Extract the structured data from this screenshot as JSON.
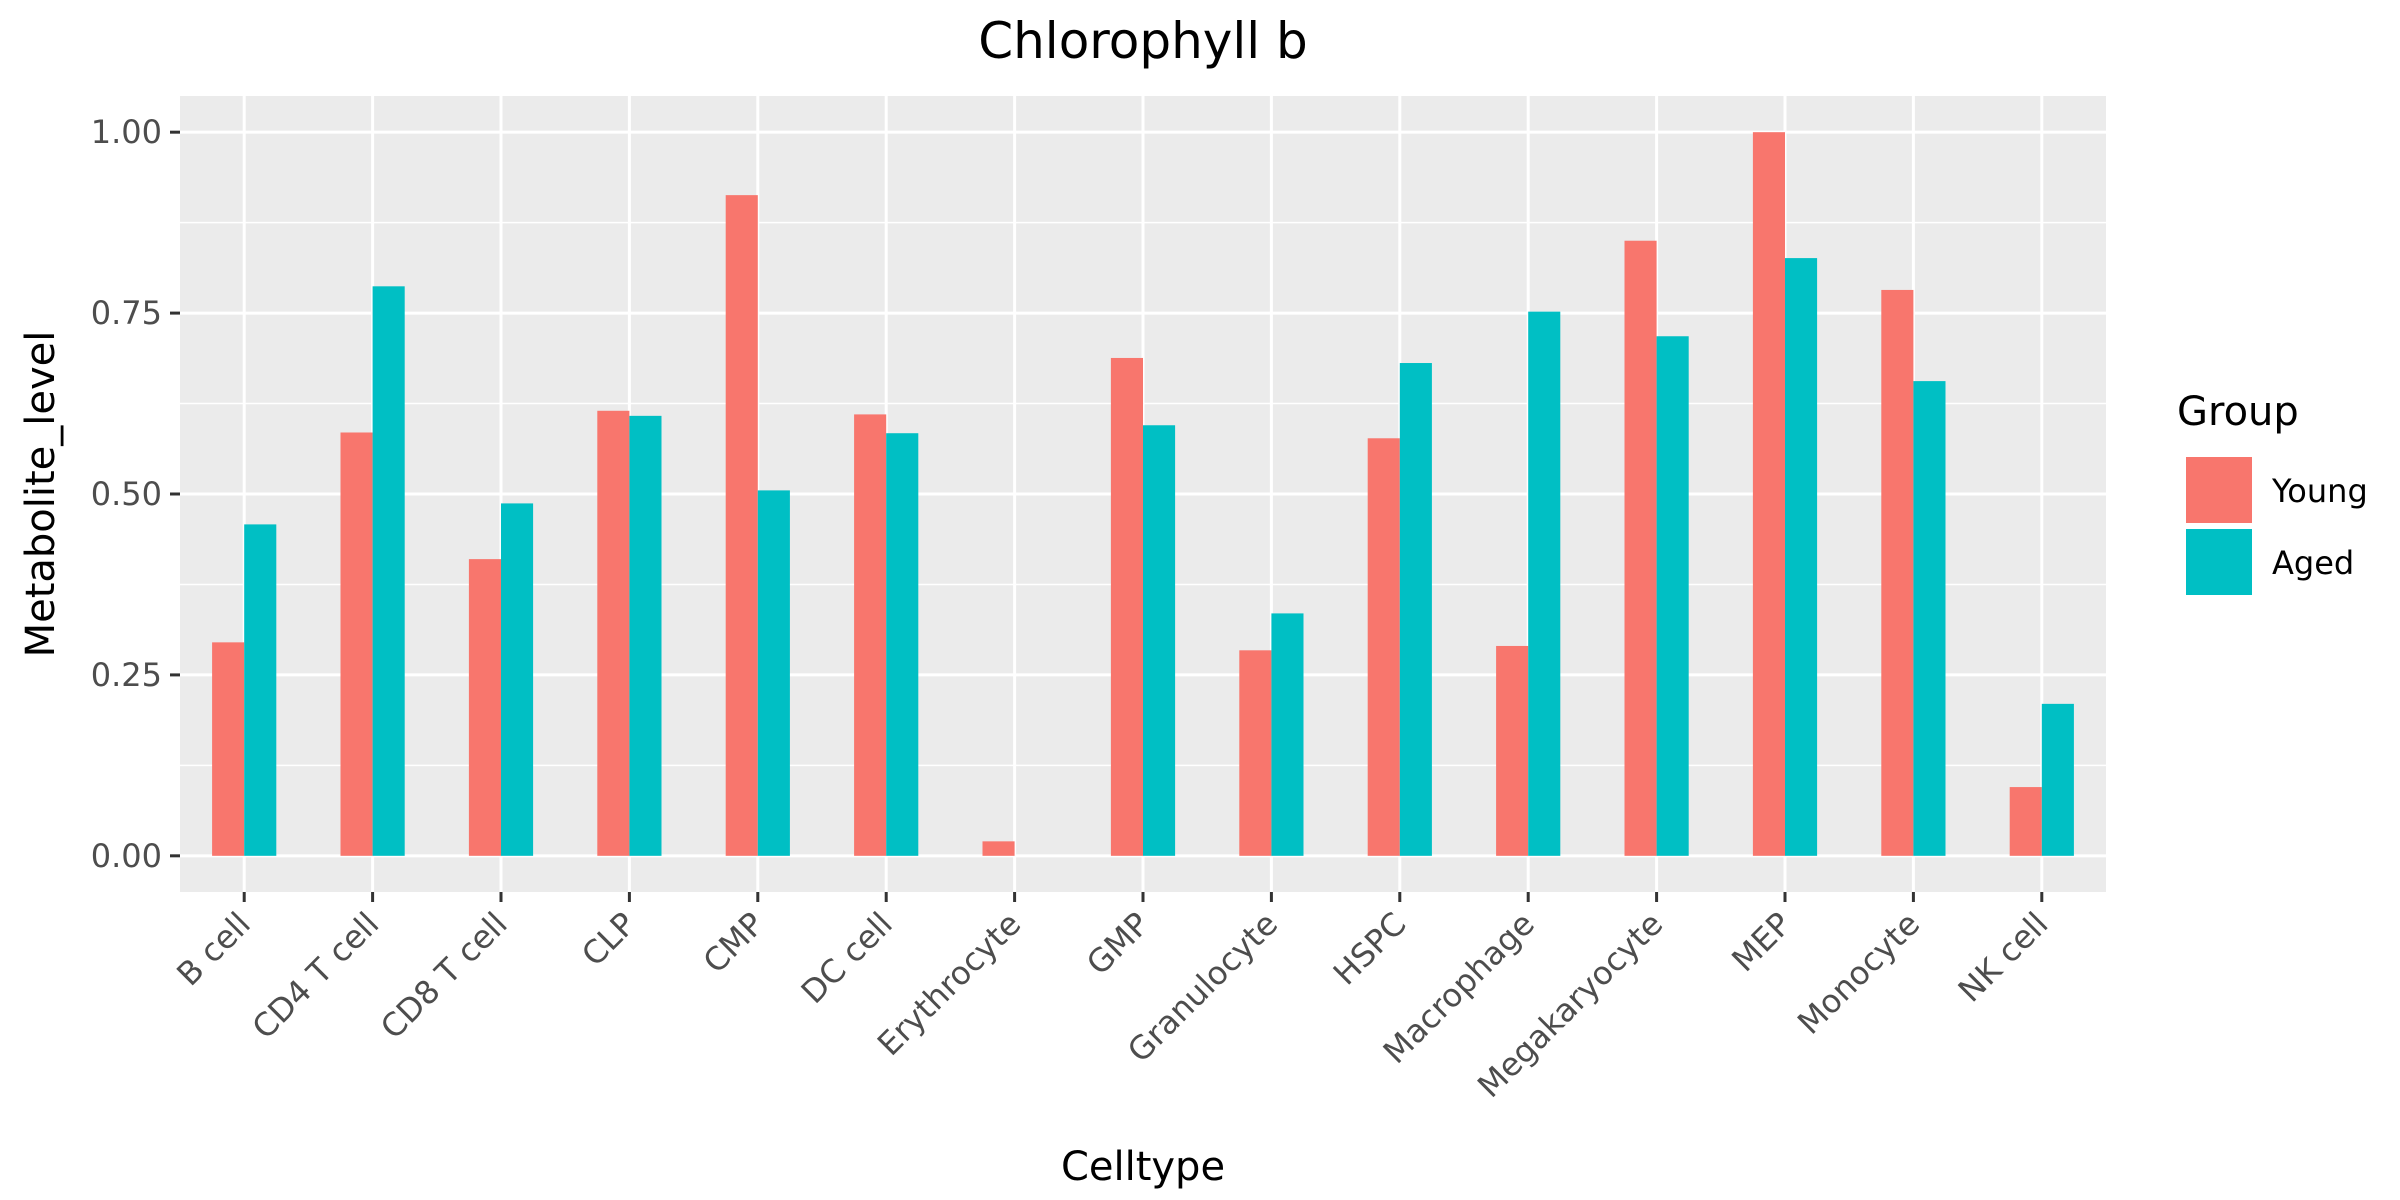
{
  "chart_data": {
    "type": "bar",
    "title": "Chlorophyll b",
    "xlabel": "Celltype",
    "ylabel": "Metabolite_level",
    "categories": [
      "B cell",
      "CD4 T cell",
      "CD8 T cell",
      "CLP",
      "CMP",
      "DC cell",
      "Erythrocyte",
      "GMP",
      "Granulocyte",
      "HSPC",
      "Macrophage",
      "Megakaryocyte",
      "MEP",
      "Monocyte",
      "NK cell"
    ],
    "series": [
      {
        "name": "Young",
        "color": "#F8766D",
        "values": [
          0.295,
          0.585,
          0.41,
          0.615,
          0.913,
          0.61,
          0.02,
          0.688,
          0.284,
          0.577,
          0.29,
          0.85,
          1.0,
          0.782,
          0.095
        ]
      },
      {
        "name": "Aged",
        "color": "#00BFC4",
        "values": [
          0.458,
          0.787,
          0.487,
          0.608,
          0.505,
          0.584,
          0.0,
          0.595,
          0.335,
          0.681,
          0.752,
          0.718,
          0.826,
          0.656,
          0.21
        ]
      }
    ],
    "ylim": [
      -0.05,
      1.05
    ],
    "yticks": [
      0,
      0.25,
      0.5,
      0.75,
      1.0
    ],
    "ytick_labels": [
      "0.00",
      "0.25",
      "0.50",
      "0.75",
      "1.00"
    ],
    "grid": true,
    "legend": {
      "title": "Group",
      "position": "right"
    }
  }
}
